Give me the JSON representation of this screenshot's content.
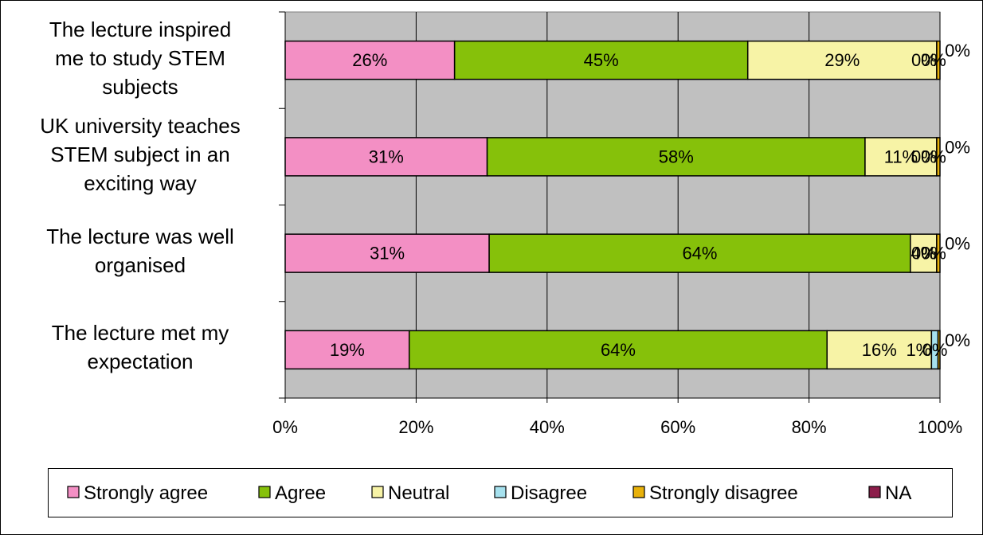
{
  "chart_data": {
    "type": "bar",
    "orientation": "horizontal",
    "stacked": "percent",
    "categories": [
      [
        "The lecture inspired",
        "me to study STEM",
        "subjects"
      ],
      [
        "UK university teaches",
        "STEM subject in an",
        "exciting way"
      ],
      [
        "The lecture was well",
        "organised"
      ],
      [
        "The lecture met my",
        "expectation"
      ]
    ],
    "series": [
      {
        "name": "Strongly agree",
        "color": "#f38fc4",
        "values": [
          26,
          31,
          31,
          19
        ],
        "labels": [
          "26%",
          "31%",
          "31%",
          "19%"
        ]
      },
      {
        "name": "Agree",
        "color": "#86c10a",
        "values": [
          45,
          58,
          64,
          64
        ],
        "labels": [
          "45%",
          "58%",
          "64%",
          "64%"
        ]
      },
      {
        "name": "Neutral",
        "color": "#f7f3a6",
        "values": [
          29,
          11,
          4,
          16
        ],
        "labels": [
          "29%",
          "11%",
          "4%",
          "16%"
        ]
      },
      {
        "name": "Disagree",
        "color": "#a6e1ee",
        "values": [
          0,
          0,
          0,
          1
        ],
        "labels": [
          "0%",
          "0%",
          "0%",
          "1%"
        ]
      },
      {
        "name": "Strongly disagree",
        "color": "#e8b10a",
        "values": [
          0.5,
          0.5,
          0.5,
          0.3
        ],
        "labels": [
          "0%",
          "0%",
          "0%",
          "0%"
        ]
      },
      {
        "name": "NA",
        "color": "#8c1d4a",
        "values": [
          0,
          0,
          0,
          0
        ],
        "labels": [
          "0%",
          "0%",
          "0%",
          "0%"
        ]
      }
    ],
    "x_ticks": [
      "0%",
      "20%",
      "40%",
      "60%",
      "80%",
      "100%"
    ],
    "xlim": [
      0,
      100
    ],
    "grid": true,
    "plot_background": "#c0c0c0",
    "legend_position": "bottom"
  }
}
